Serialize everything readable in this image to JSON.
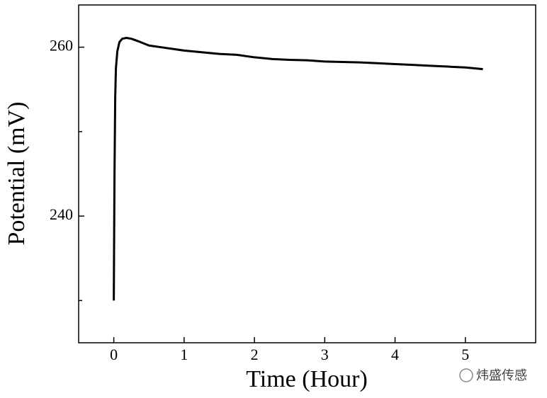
{
  "chart_data": {
    "type": "line",
    "xlabel": "Time (Hour)",
    "ylabel": "Potential (mV)",
    "x": [
      0,
      0.005,
      0.01,
      0.02,
      0.03,
      0.05,
      0.08,
      0.12,
      0.18,
      0.25,
      0.35,
      0.5,
      0.75,
      1,
      1.25,
      1.5,
      1.75,
      2,
      2.25,
      2.5,
      2.75,
      3,
      3.25,
      3.5,
      3.75,
      4,
      4.25,
      4.5,
      4.75,
      5,
      5.25
    ],
    "series": [
      {
        "name": "Potential",
        "color": "#000000",
        "values": [
          230,
          238,
          245,
          254,
          257.5,
          259.5,
          260.6,
          261,
          261.1,
          261,
          260.7,
          260.2,
          259.9,
          259.6,
          259.4,
          259.2,
          259.1,
          258.8,
          258.6,
          258.5,
          258.45,
          258.3,
          258.25,
          258.2,
          258.1,
          258,
          257.9,
          257.8,
          257.7,
          257.6,
          257.4
        ]
      }
    ],
    "xlim": [
      -0.5,
      6
    ],
    "xticks": [
      0,
      1,
      2,
      3,
      4,
      5
    ],
    "ylim": [
      225,
      265
    ],
    "yticks": [
      240,
      260
    ],
    "yminorticks": [
      230,
      250
    ],
    "watermark": "炜盛传感"
  }
}
